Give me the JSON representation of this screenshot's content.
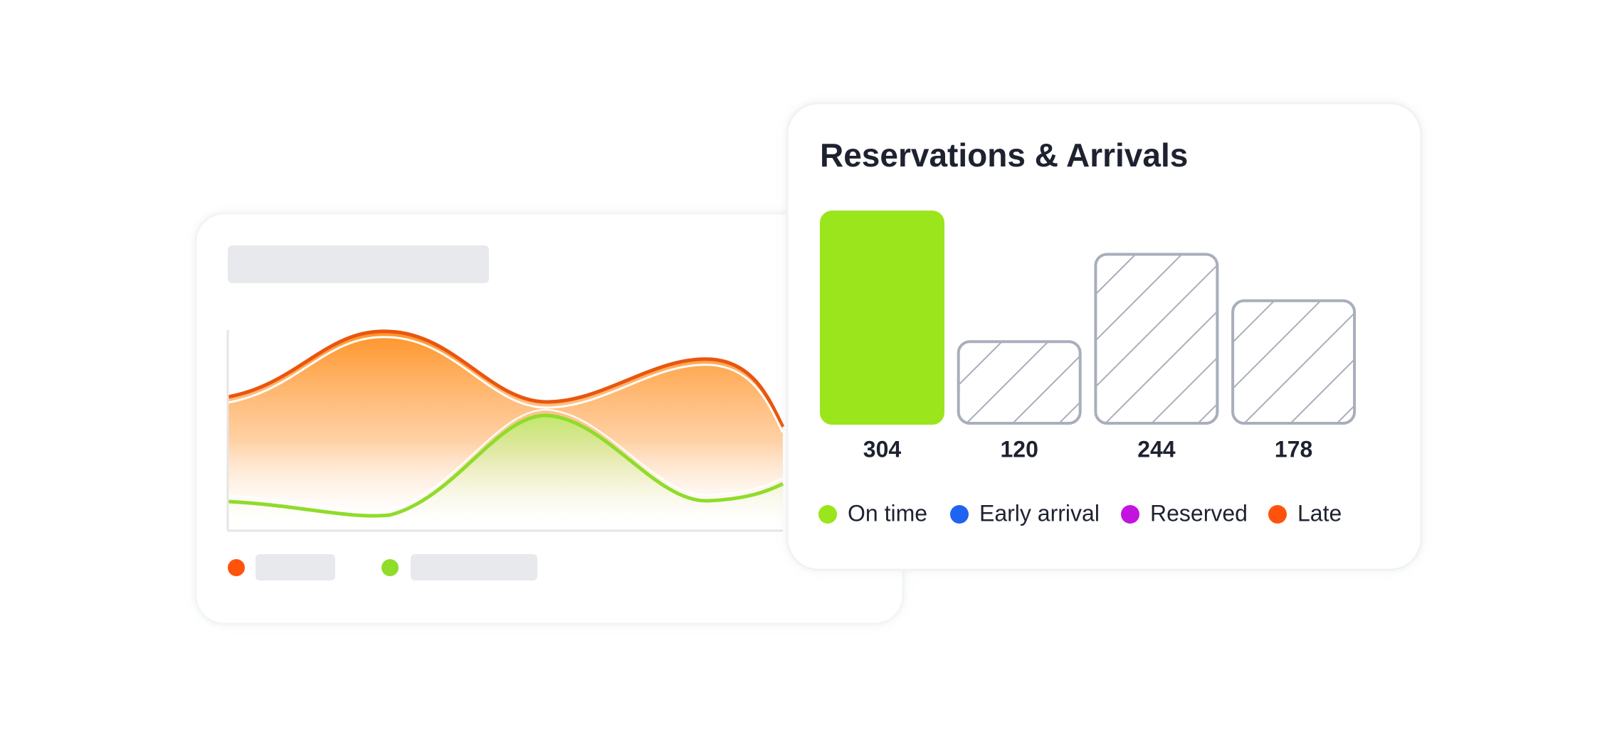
{
  "chart_data": {
    "type": "bar",
    "title": "Reservations & Arrivals",
    "values": [
      304,
      120,
      244,
      178
    ],
    "styles": [
      "solid",
      "hatched",
      "hatched",
      "hatched"
    ],
    "color": "#9ae51b",
    "hatch_color": "#a9aebb",
    "legend": [
      {
        "name": "On time",
        "color": "#9ae51b"
      },
      {
        "name": "Early arrival",
        "color": "#1f63f0"
      },
      {
        "name": "Reserved",
        "color": "#c313e0"
      },
      {
        "name": "Late",
        "color": "#ff530d"
      }
    ]
  }
}
